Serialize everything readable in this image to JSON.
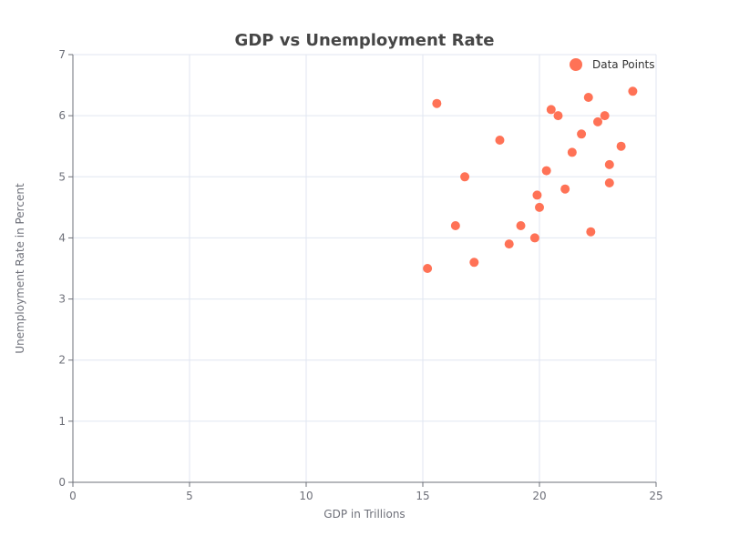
{
  "chart_data": {
    "type": "scatter",
    "title": "GDP vs Unemployment Rate",
    "xlabel": "GDP in Trillions",
    "ylabel": "Unemployment Rate in Percent",
    "xlim": [
      0,
      25
    ],
    "ylim": [
      0,
      7
    ],
    "x_ticks": [
      "0",
      "5",
      "10",
      "15",
      "20",
      "25"
    ],
    "y_ticks": [
      "0",
      "1",
      "2",
      "3",
      "4",
      "5",
      "6",
      "7"
    ],
    "grid": true,
    "legend_position": "top-right",
    "series": [
      {
        "name": "Data Points",
        "color": "#ff7256",
        "points": [
          {
            "x": 15.2,
            "y": 3.5
          },
          {
            "x": 15.6,
            "y": 6.2
          },
          {
            "x": 16.4,
            "y": 4.2
          },
          {
            "x": 16.8,
            "y": 5.0
          },
          {
            "x": 17.2,
            "y": 3.6
          },
          {
            "x": 18.3,
            "y": 5.6
          },
          {
            "x": 18.7,
            "y": 3.9
          },
          {
            "x": 19.2,
            "y": 4.2
          },
          {
            "x": 19.8,
            "y": 4.0
          },
          {
            "x": 19.9,
            "y": 4.7
          },
          {
            "x": 20.0,
            "y": 4.5
          },
          {
            "x": 20.3,
            "y": 5.1
          },
          {
            "x": 20.5,
            "y": 6.1
          },
          {
            "x": 20.8,
            "y": 6.0
          },
          {
            "x": 21.1,
            "y": 4.8
          },
          {
            "x": 21.4,
            "y": 5.4
          },
          {
            "x": 21.8,
            "y": 5.7
          },
          {
            "x": 22.1,
            "y": 6.3
          },
          {
            "x": 22.2,
            "y": 4.1
          },
          {
            "x": 22.5,
            "y": 5.9
          },
          {
            "x": 22.8,
            "y": 6.0
          },
          {
            "x": 23.0,
            "y": 5.2
          },
          {
            "x": 23.0,
            "y": 4.9
          },
          {
            "x": 23.5,
            "y": 5.5
          },
          {
            "x": 24.0,
            "y": 6.4
          }
        ]
      }
    ]
  }
}
